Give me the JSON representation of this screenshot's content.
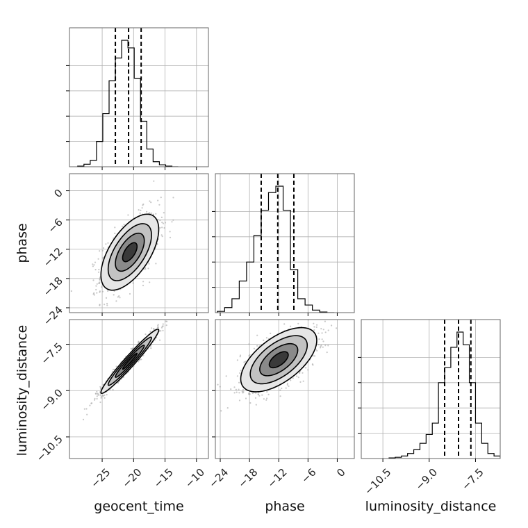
{
  "chart_data": {
    "type": "corner",
    "grid": true,
    "parameters": [
      {
        "name": "geocent_time",
        "label": "geocent_time",
        "range": [
          -30.2,
          -8.1
        ],
        "ticks": [
          -25,
          -20,
          -15,
          -10
        ],
        "tick_labels": [
          "−25",
          "−20",
          "−15",
          "−10"
        ],
        "quantiles": [
          -22.9,
          -20.8,
          -18.8
        ],
        "histogram": {
          "bin_edges": [
            -28.9,
            -27.9,
            -26.9,
            -25.9,
            -24.9,
            -23.9,
            -22.9,
            -21.9,
            -20.9,
            -19.9,
            -18.9,
            -17.9,
            -16.9,
            -15.9,
            -14.9,
            -13.9,
            -12.9
          ],
          "counts": [
            0.005,
            0.02,
            0.05,
            0.2,
            0.42,
            0.68,
            0.86,
            1.0,
            0.94,
            0.7,
            0.36,
            0.14,
            0.04,
            0.015,
            0.005,
            0.0
          ]
        }
      },
      {
        "name": "phase",
        "label": "phase",
        "range": [
          -25.0,
          3.5
        ],
        "ticks": [
          -24,
          -18,
          -12,
          -6,
          0
        ],
        "tick_labels": [
          "−24",
          "−18",
          "−12",
          "−6",
          "0"
        ],
        "quantiles": [
          -15.6,
          -12.2,
          -8.9
        ],
        "histogram": {
          "bin_edges": [
            -24.6,
            -23.1,
            -21.6,
            -20.1,
            -18.6,
            -17.1,
            -15.6,
            -14.1,
            -12.6,
            -11.1,
            -9.6,
            -8.1,
            -6.6,
            -5.1,
            -3.6,
            -2.1,
            -0.6
          ],
          "counts": [
            0.01,
            0.04,
            0.11,
            0.25,
            0.4,
            0.61,
            0.81,
            0.95,
            1.0,
            0.81,
            0.34,
            0.11,
            0.06,
            0.02,
            0.005,
            0.0
          ]
        }
      },
      {
        "name": "luminosity_distance",
        "label": "luminosity_distance",
        "range": [
          -11.2,
          -6.7
        ],
        "ticks": [
          -10.5,
          -9.0,
          -7.5
        ],
        "tick_labels": [
          "−10.5",
          "−9.0",
          "−7.5"
        ],
        "quantiles": [
          -8.5,
          -8.05,
          -7.65
        ],
        "histogram": {
          "bin_edges": [
            -10.3,
            -10.1,
            -9.9,
            -9.7,
            -9.5,
            -9.3,
            -9.1,
            -8.9,
            -8.7,
            -8.5,
            -8.3,
            -8.1,
            -7.9,
            -7.7,
            -7.5,
            -7.3,
            -7.1,
            -6.9,
            -6.7
          ],
          "counts": [
            0.005,
            0.01,
            0.02,
            0.04,
            0.07,
            0.12,
            0.19,
            0.28,
            0.6,
            0.72,
            0.88,
            1.0,
            0.9,
            0.6,
            0.28,
            0.12,
            0.04,
            0.02
          ]
        }
      }
    ],
    "joint": [
      {
        "x": "geocent_time",
        "y": "phase",
        "center": [
          -20.6,
          -12.6
        ],
        "sigma": [
          2.3,
          3.9
        ],
        "correlation": 0.6,
        "contour_levels_sigma": [
          0.5,
          1.0,
          1.5,
          2.0
        ],
        "scatter": "gray-points"
      },
      {
        "x": "geocent_time",
        "y": "luminosity_distance",
        "center": [
          -20.6,
          -8.05
        ],
        "sigma": [
          2.3,
          0.52
        ],
        "correlation": 0.97,
        "contour_levels_sigma": [
          0.5,
          1.0,
          1.5,
          2.0
        ],
        "scatter": "gray-points"
      },
      {
        "x": "phase",
        "y": "luminosity_distance",
        "center": [
          -12.0,
          -8.0
        ],
        "sigma": [
          3.9,
          0.52
        ],
        "correlation": 0.6,
        "contour_levels_sigma": [
          0.5,
          1.0,
          1.5,
          2.0
        ],
        "scatter": "gray-points"
      }
    ],
    "colors": {
      "line": "#000000",
      "grid": "#b0b0b0",
      "frame": "#666666",
      "points": "#9a9a9a",
      "fill_levels": [
        "#e6e6e6",
        "#c2c2c2",
        "#8a8a8a",
        "#3a3a3a"
      ]
    }
  }
}
